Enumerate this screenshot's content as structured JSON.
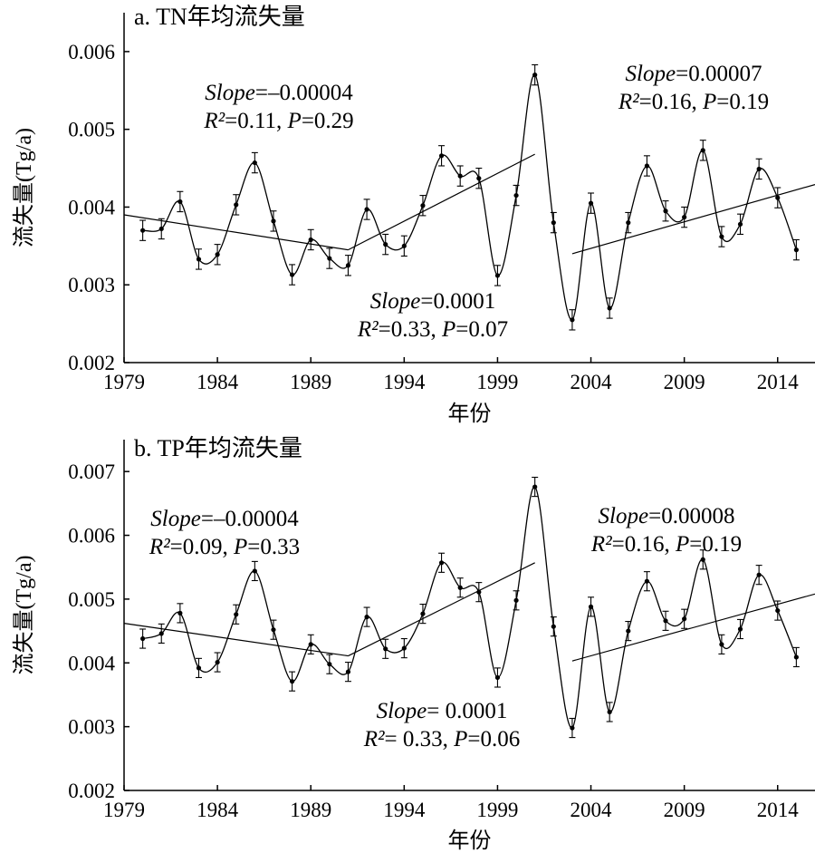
{
  "chart_data": [
    {
      "type": "line",
      "title": "a. TN年均流失量",
      "xlabel": "年份",
      "ylabel": "流失量(Tg/a)",
      "xlim": [
        1979,
        2016
      ],
      "ylim": [
        0.002,
        0.0065
      ],
      "xticks": [
        "1979",
        "1984",
        "1989",
        "1994",
        "1999",
        "2004",
        "2009",
        "2014"
      ],
      "yticks": [
        "0.002",
        "0.003",
        "0.004",
        "0.005",
        "0.006"
      ],
      "series": [
        {
          "x": [
            1980,
            1981,
            1982,
            1983,
            1984,
            1985,
            1986,
            1987,
            1988,
            1989,
            1990,
            1991,
            1992,
            1993,
            1994,
            1995,
            1996,
            1997,
            1998,
            1999,
            2000,
            2001,
            2002,
            2003,
            2004,
            2005,
            2006,
            2007,
            2008,
            2009,
            2010,
            2011,
            2012,
            2013,
            2014,
            2015
          ],
          "y": [
            0.0037,
            0.00372,
            0.00407,
            0.00333,
            0.00339,
            0.00403,
            0.00457,
            0.00382,
            0.00313,
            0.00358,
            0.00334,
            0.00325,
            0.00397,
            0.00352,
            0.0035,
            0.00402,
            0.00466,
            0.0044,
            0.00437,
            0.00312,
            0.00415,
            0.0057,
            0.0038,
            0.00255,
            0.00405,
            0.0027,
            0.0038,
            0.00453,
            0.00395,
            0.00387,
            0.00473,
            0.00362,
            0.00378,
            0.00449,
            0.00412,
            0.00345
          ],
          "error": 0.00013
        }
      ],
      "trends": [
        {
          "x": [
            1979,
            1991
          ],
          "y": [
            0.0039,
            0.00345
          ]
        },
        {
          "x": [
            1991,
            2001
          ],
          "y": [
            0.00345,
            0.00468
          ]
        },
        {
          "x": [
            2003,
            2016
          ],
          "y": [
            0.0034,
            0.00429
          ]
        }
      ],
      "annotations": [
        {
          "slope_label": "Slope",
          "slope_value": "=–0.00004",
          "r2_label": "R²",
          "r2_value": "=0.11, ",
          "p_label": "P",
          "p_value": "=0.29"
        },
        {
          "slope_label": "Slope",
          "slope_value": "=0.0001",
          "r2_label": "R²",
          "r2_value": "=0.33, ",
          "p_label": "P",
          "p_value": "=0.07"
        },
        {
          "slope_label": "Slope",
          "slope_value": "=0.00007",
          "r2_label": "R²",
          "r2_value": "=0.16, ",
          "p_label": "P",
          "p_value": "=0.19"
        }
      ]
    },
    {
      "type": "line",
      "title": "b. TP年均流失量",
      "xlabel": "年份",
      "ylabel": "流失量(Tg/a)",
      "xlim": [
        1979,
        2016
      ],
      "ylim": [
        0.002,
        0.0075
      ],
      "xticks": [
        "1979",
        "1984",
        "1989",
        "1994",
        "1999",
        "2004",
        "2009",
        "2014"
      ],
      "yticks": [
        "0.002",
        "0.003",
        "0.004",
        "0.005",
        "0.006",
        "0.007"
      ],
      "series": [
        {
          "x": [
            1980,
            1981,
            1982,
            1983,
            1984,
            1985,
            1986,
            1987,
            1988,
            1989,
            1990,
            1991,
            1992,
            1993,
            1994,
            1995,
            1996,
            1997,
            1998,
            1999,
            2000,
            2001,
            2002,
            2003,
            2004,
            2005,
            2006,
            2007,
            2008,
            2009,
            2010,
            2011,
            2012,
            2013,
            2014,
            2015
          ],
          "y": [
            0.00438,
            0.00446,
            0.00478,
            0.00392,
            0.00401,
            0.00476,
            0.00544,
            0.00452,
            0.00371,
            0.00429,
            0.00398,
            0.00386,
            0.00472,
            0.00422,
            0.00423,
            0.00477,
            0.00557,
            0.00518,
            0.00511,
            0.00377,
            0.00498,
            0.00676,
            0.00457,
            0.00298,
            0.00488,
            0.00323,
            0.0045,
            0.00528,
            0.00466,
            0.00469,
            0.00562,
            0.00429,
            0.00453,
            0.00538,
            0.00482,
            0.00409
          ],
          "error": 0.00015
        }
      ],
      "trends": [
        {
          "x": [
            1979,
            1991
          ],
          "y": [
            0.00462,
            0.00411
          ]
        },
        {
          "x": [
            1991,
            2001
          ],
          "y": [
            0.00411,
            0.00557
          ]
        },
        {
          "x": [
            2003,
            2016
          ],
          "y": [
            0.00403,
            0.00508
          ]
        }
      ],
      "annotations": [
        {
          "slope_label": "Slope",
          "slope_value": "=–0.00004",
          "r2_label": "R²",
          "r2_value": "=0.09, ",
          "p_label": "P",
          "p_value": "=0.33"
        },
        {
          "slope_label": "Slope",
          "slope_value": "= 0.0001",
          "r2_label": "R²",
          "r2_value": "= 0.33, ",
          "p_label": "P",
          "p_value": "=0.06"
        },
        {
          "slope_label": "Slope",
          "slope_value": "=0.00008",
          "r2_label": "R²",
          "r2_value": "=0.16, ",
          "p_label": "P",
          "p_value": "=0.19"
        }
      ]
    }
  ]
}
